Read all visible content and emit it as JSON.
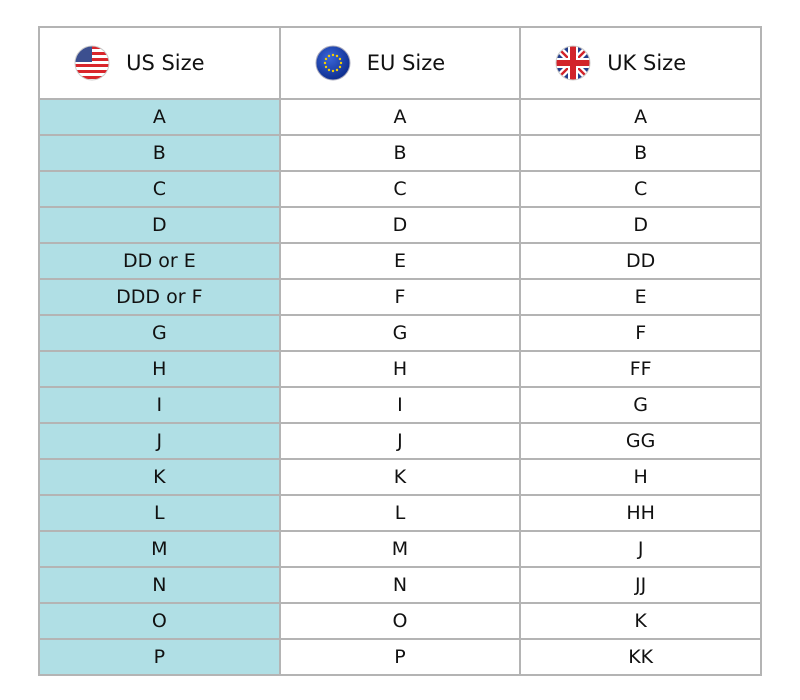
{
  "headers": [
    {
      "label": "US Size",
      "icon": "us-flag-icon"
    },
    {
      "label": "EU Size",
      "icon": "eu-flag-icon"
    },
    {
      "label": "UK Size",
      "icon": "uk-flag-icon"
    }
  ],
  "colors": {
    "us_column": "#b0dfe5",
    "border": "#b4b4b4"
  },
  "rows": [
    [
      "A",
      "A",
      "A"
    ],
    [
      "B",
      "B",
      "B"
    ],
    [
      "C",
      "C",
      "C"
    ],
    [
      "D",
      "D",
      "D"
    ],
    [
      "DD or E",
      "E",
      "DD"
    ],
    [
      "DDD or F",
      "F",
      "E"
    ],
    [
      "G",
      "G",
      "F"
    ],
    [
      "H",
      "H",
      "FF"
    ],
    [
      "I",
      "I",
      "G"
    ],
    [
      "J",
      "J",
      "GG"
    ],
    [
      "K",
      "K",
      "H"
    ],
    [
      "L",
      "L",
      "HH"
    ],
    [
      "M",
      "M",
      "J"
    ],
    [
      "N",
      "N",
      "JJ"
    ],
    [
      "O",
      "O",
      "K"
    ],
    [
      "P",
      "P",
      "KK"
    ]
  ]
}
